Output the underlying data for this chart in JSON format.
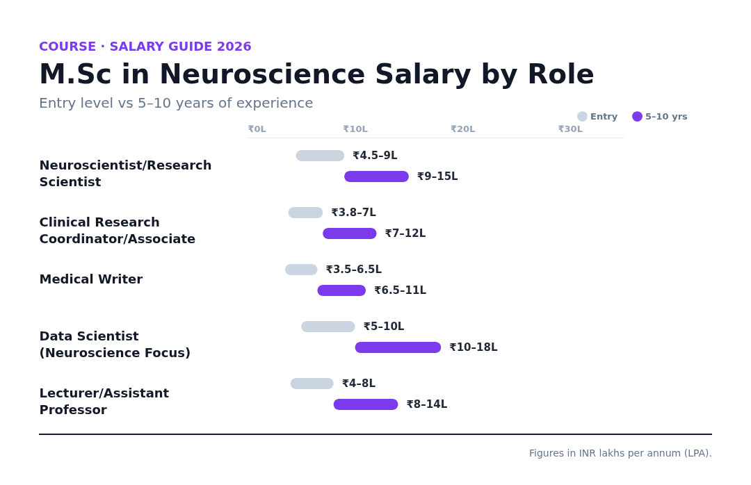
{
  "chart_data": {
    "type": "bar",
    "orientation": "horizontal",
    "title": "M.Sc in Neuroscience Salary by Role",
    "subtitle": "Entry level vs 5–10 years of experience",
    "annotations": [
      "COURSE · SALARY GUIDE 2026",
      "Figures in INR lakhs per annum (LPA)."
    ],
    "categories": [
      "Neuroscientist/Research Scientist",
      "Clinical Research Coordinator/Associate",
      "Medical Writer",
      "Data Scientist (Neuroscience Focus)",
      "Lecturer/Assistant Professor"
    ],
    "series": [
      {
        "name": "Entry",
        "color": "#cbd5e1",
        "base": [
          4.5,
          3.8,
          3.5,
          5,
          4
        ],
        "values": [
          4.5,
          3.2,
          3,
          5,
          4
        ],
        "value_labels": [
          "₹4.5–9L",
          "₹3.8–7L",
          "₹3.5–6.5L",
          "₹5–10L",
          "₹4–8L"
        ]
      },
      {
        "name": "5–10 yrs",
        "color": "#7c3aed",
        "base": [
          9,
          7,
          6.5,
          10,
          8
        ],
        "values": [
          6,
          5,
          4.5,
          8,
          6
        ],
        "value_labels": [
          "₹9–15L",
          "₹7–12L",
          "₹6.5–11L",
          "₹10–18L",
          "₹8–14L"
        ]
      }
    ],
    "xlim": [
      0,
      35
    ],
    "xticks": [
      {
        "value": 0,
        "label": "₹0L"
      },
      {
        "value": 10,
        "label": "₹10L"
      },
      {
        "value": 20,
        "label": "₹20L"
      },
      {
        "value": 30,
        "label": "₹30L"
      }
    ],
    "legend": "top right"
  }
}
